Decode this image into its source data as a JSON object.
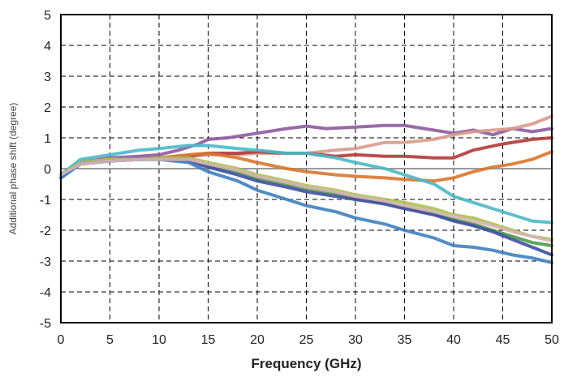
{
  "chart_data": {
    "type": "line",
    "title": "",
    "xlabel": "Frequency (GHz)",
    "ylabel": "Additional phase shift (degree)",
    "xlim": [
      0,
      50
    ],
    "ylim": [
      -5,
      5
    ],
    "xticks": [
      0,
      5,
      10,
      15,
      20,
      25,
      30,
      35,
      40,
      45,
      50
    ],
    "yticks": [
      5,
      4,
      3,
      2,
      1,
      0,
      -1,
      -2,
      -3,
      -4,
      -5
    ],
    "grid": true,
    "legend": "none",
    "series": [
      {
        "color": "#8e5a9e",
        "x": [
          0,
          2,
          5,
          8,
          10,
          12,
          14,
          15,
          17,
          20,
          23,
          25,
          27,
          30,
          33,
          35,
          37,
          40,
          42,
          44,
          46,
          48,
          50
        ],
        "y": [
          -0.3,
          0.2,
          0.35,
          0.4,
          0.45,
          0.6,
          0.8,
          0.95,
          1.0,
          1.15,
          1.3,
          1.38,
          1.3,
          1.35,
          1.4,
          1.4,
          1.3,
          1.15,
          1.25,
          1.1,
          1.3,
          1.2,
          1.3
        ]
      },
      {
        "color": "#d99a8a",
        "x": [
          0,
          2,
          5,
          8,
          10,
          13,
          15,
          18,
          20,
          23,
          25,
          28,
          30,
          33,
          35,
          38,
          40,
          42,
          44,
          46,
          48,
          50
        ],
        "y": [
          -0.2,
          0.2,
          0.3,
          0.3,
          0.35,
          0.4,
          0.45,
          0.45,
          0.5,
          0.5,
          0.5,
          0.6,
          0.65,
          0.85,
          0.85,
          0.95,
          1.1,
          1.2,
          1.25,
          1.3,
          1.45,
          1.7
        ]
      },
      {
        "color": "#b23a3a",
        "x": [
          0,
          2,
          5,
          8,
          10,
          13,
          15,
          18,
          20,
          23,
          25,
          28,
          30,
          33,
          35,
          38,
          40,
          42,
          45,
          48,
          50
        ],
        "y": [
          -0.2,
          0.2,
          0.25,
          0.3,
          0.35,
          0.4,
          0.5,
          0.5,
          0.55,
          0.5,
          0.5,
          0.4,
          0.45,
          0.4,
          0.4,
          0.35,
          0.35,
          0.6,
          0.8,
          0.95,
          1.0
        ]
      },
      {
        "color": "#d9772f",
        "x": [
          0,
          2,
          5,
          8,
          10,
          13,
          15,
          18,
          20,
          23,
          25,
          28,
          30,
          33,
          35,
          38,
          40,
          42,
          44,
          46,
          48,
          50
        ],
        "y": [
          -0.2,
          0.15,
          0.25,
          0.3,
          0.35,
          0.45,
          0.5,
          0.35,
          0.2,
          0.0,
          -0.1,
          -0.2,
          -0.25,
          -0.3,
          -0.35,
          -0.4,
          -0.3,
          -0.1,
          0.05,
          0.15,
          0.3,
          0.55
        ]
      },
      {
        "color": "#4bb8c7",
        "x": [
          0,
          2,
          5,
          8,
          10,
          13,
          15,
          18,
          20,
          23,
          25,
          28,
          30,
          33,
          35,
          38,
          40,
          42,
          44,
          46,
          48,
          50
        ],
        "y": [
          -0.2,
          0.3,
          0.45,
          0.6,
          0.65,
          0.75,
          0.75,
          0.65,
          0.6,
          0.5,
          0.5,
          0.35,
          0.2,
          0.0,
          -0.2,
          -0.5,
          -0.9,
          -1.1,
          -1.3,
          -1.5,
          -1.7,
          -1.75
        ]
      },
      {
        "color": "#a9c24e",
        "x": [
          0,
          2,
          5,
          8,
          10,
          13,
          15,
          18,
          20,
          23,
          25,
          28,
          30,
          33,
          35,
          38,
          40,
          42,
          44,
          46,
          48,
          50
        ],
        "y": [
          -0.2,
          0.2,
          0.3,
          0.3,
          0.35,
          0.35,
          0.2,
          0.0,
          -0.2,
          -0.4,
          -0.55,
          -0.7,
          -0.85,
          -1.0,
          -1.1,
          -1.3,
          -1.5,
          -1.6,
          -1.8,
          -2.0,
          -2.2,
          -2.3
        ]
      },
      {
        "color": "#4a9a4a",
        "x": [
          0,
          2,
          5,
          8,
          10,
          13,
          15,
          18,
          20,
          23,
          25,
          28,
          30,
          33,
          35,
          38,
          40,
          42,
          44,
          46,
          48,
          50
        ],
        "y": [
          -0.2,
          0.15,
          0.25,
          0.3,
          0.3,
          0.3,
          0.1,
          -0.1,
          -0.3,
          -0.5,
          -0.65,
          -0.8,
          -0.95,
          -1.1,
          -1.25,
          -1.45,
          -1.65,
          -1.8,
          -2.0,
          -2.2,
          -2.4,
          -2.5
        ]
      },
      {
        "color": "#3e4fa0",
        "x": [
          0,
          2,
          5,
          8,
          10,
          13,
          15,
          18,
          20,
          23,
          25,
          28,
          30,
          33,
          35,
          38,
          40,
          42,
          44,
          46,
          48,
          50
        ],
        "y": [
          -0.3,
          0.15,
          0.25,
          0.3,
          0.3,
          0.25,
          0.05,
          -0.2,
          -0.4,
          -0.6,
          -0.75,
          -0.9,
          -1.0,
          -1.15,
          -1.3,
          -1.5,
          -1.7,
          -1.85,
          -2.05,
          -2.3,
          -2.55,
          -2.8
        ]
      },
      {
        "color": "#3f7fbf",
        "x": [
          0,
          2,
          5,
          8,
          10,
          13,
          15,
          18,
          20,
          23,
          25,
          28,
          30,
          33,
          35,
          38,
          40,
          42,
          44,
          46,
          48,
          50
        ],
        "y": [
          -0.3,
          0.15,
          0.25,
          0.3,
          0.3,
          0.2,
          -0.1,
          -0.4,
          -0.7,
          -1.0,
          -1.2,
          -1.4,
          -1.6,
          -1.8,
          -2.0,
          -2.25,
          -2.5,
          -2.55,
          -2.65,
          -2.8,
          -2.9,
          -3.05
        ]
      },
      {
        "color": "#d8b4b4",
        "x": [
          0,
          2,
          5,
          8,
          10,
          13,
          15,
          18,
          20,
          23,
          25,
          28,
          30,
          33,
          35,
          38,
          40,
          42,
          44,
          46,
          48,
          50
        ],
        "y": [
          -0.2,
          0.15,
          0.25,
          0.3,
          0.3,
          0.3,
          0.15,
          -0.05,
          -0.25,
          -0.45,
          -0.6,
          -0.75,
          -0.9,
          -1.05,
          -1.2,
          -1.4,
          -1.55,
          -1.7,
          -1.85,
          -2.05,
          -2.2,
          -2.35
        ]
      }
    ]
  }
}
